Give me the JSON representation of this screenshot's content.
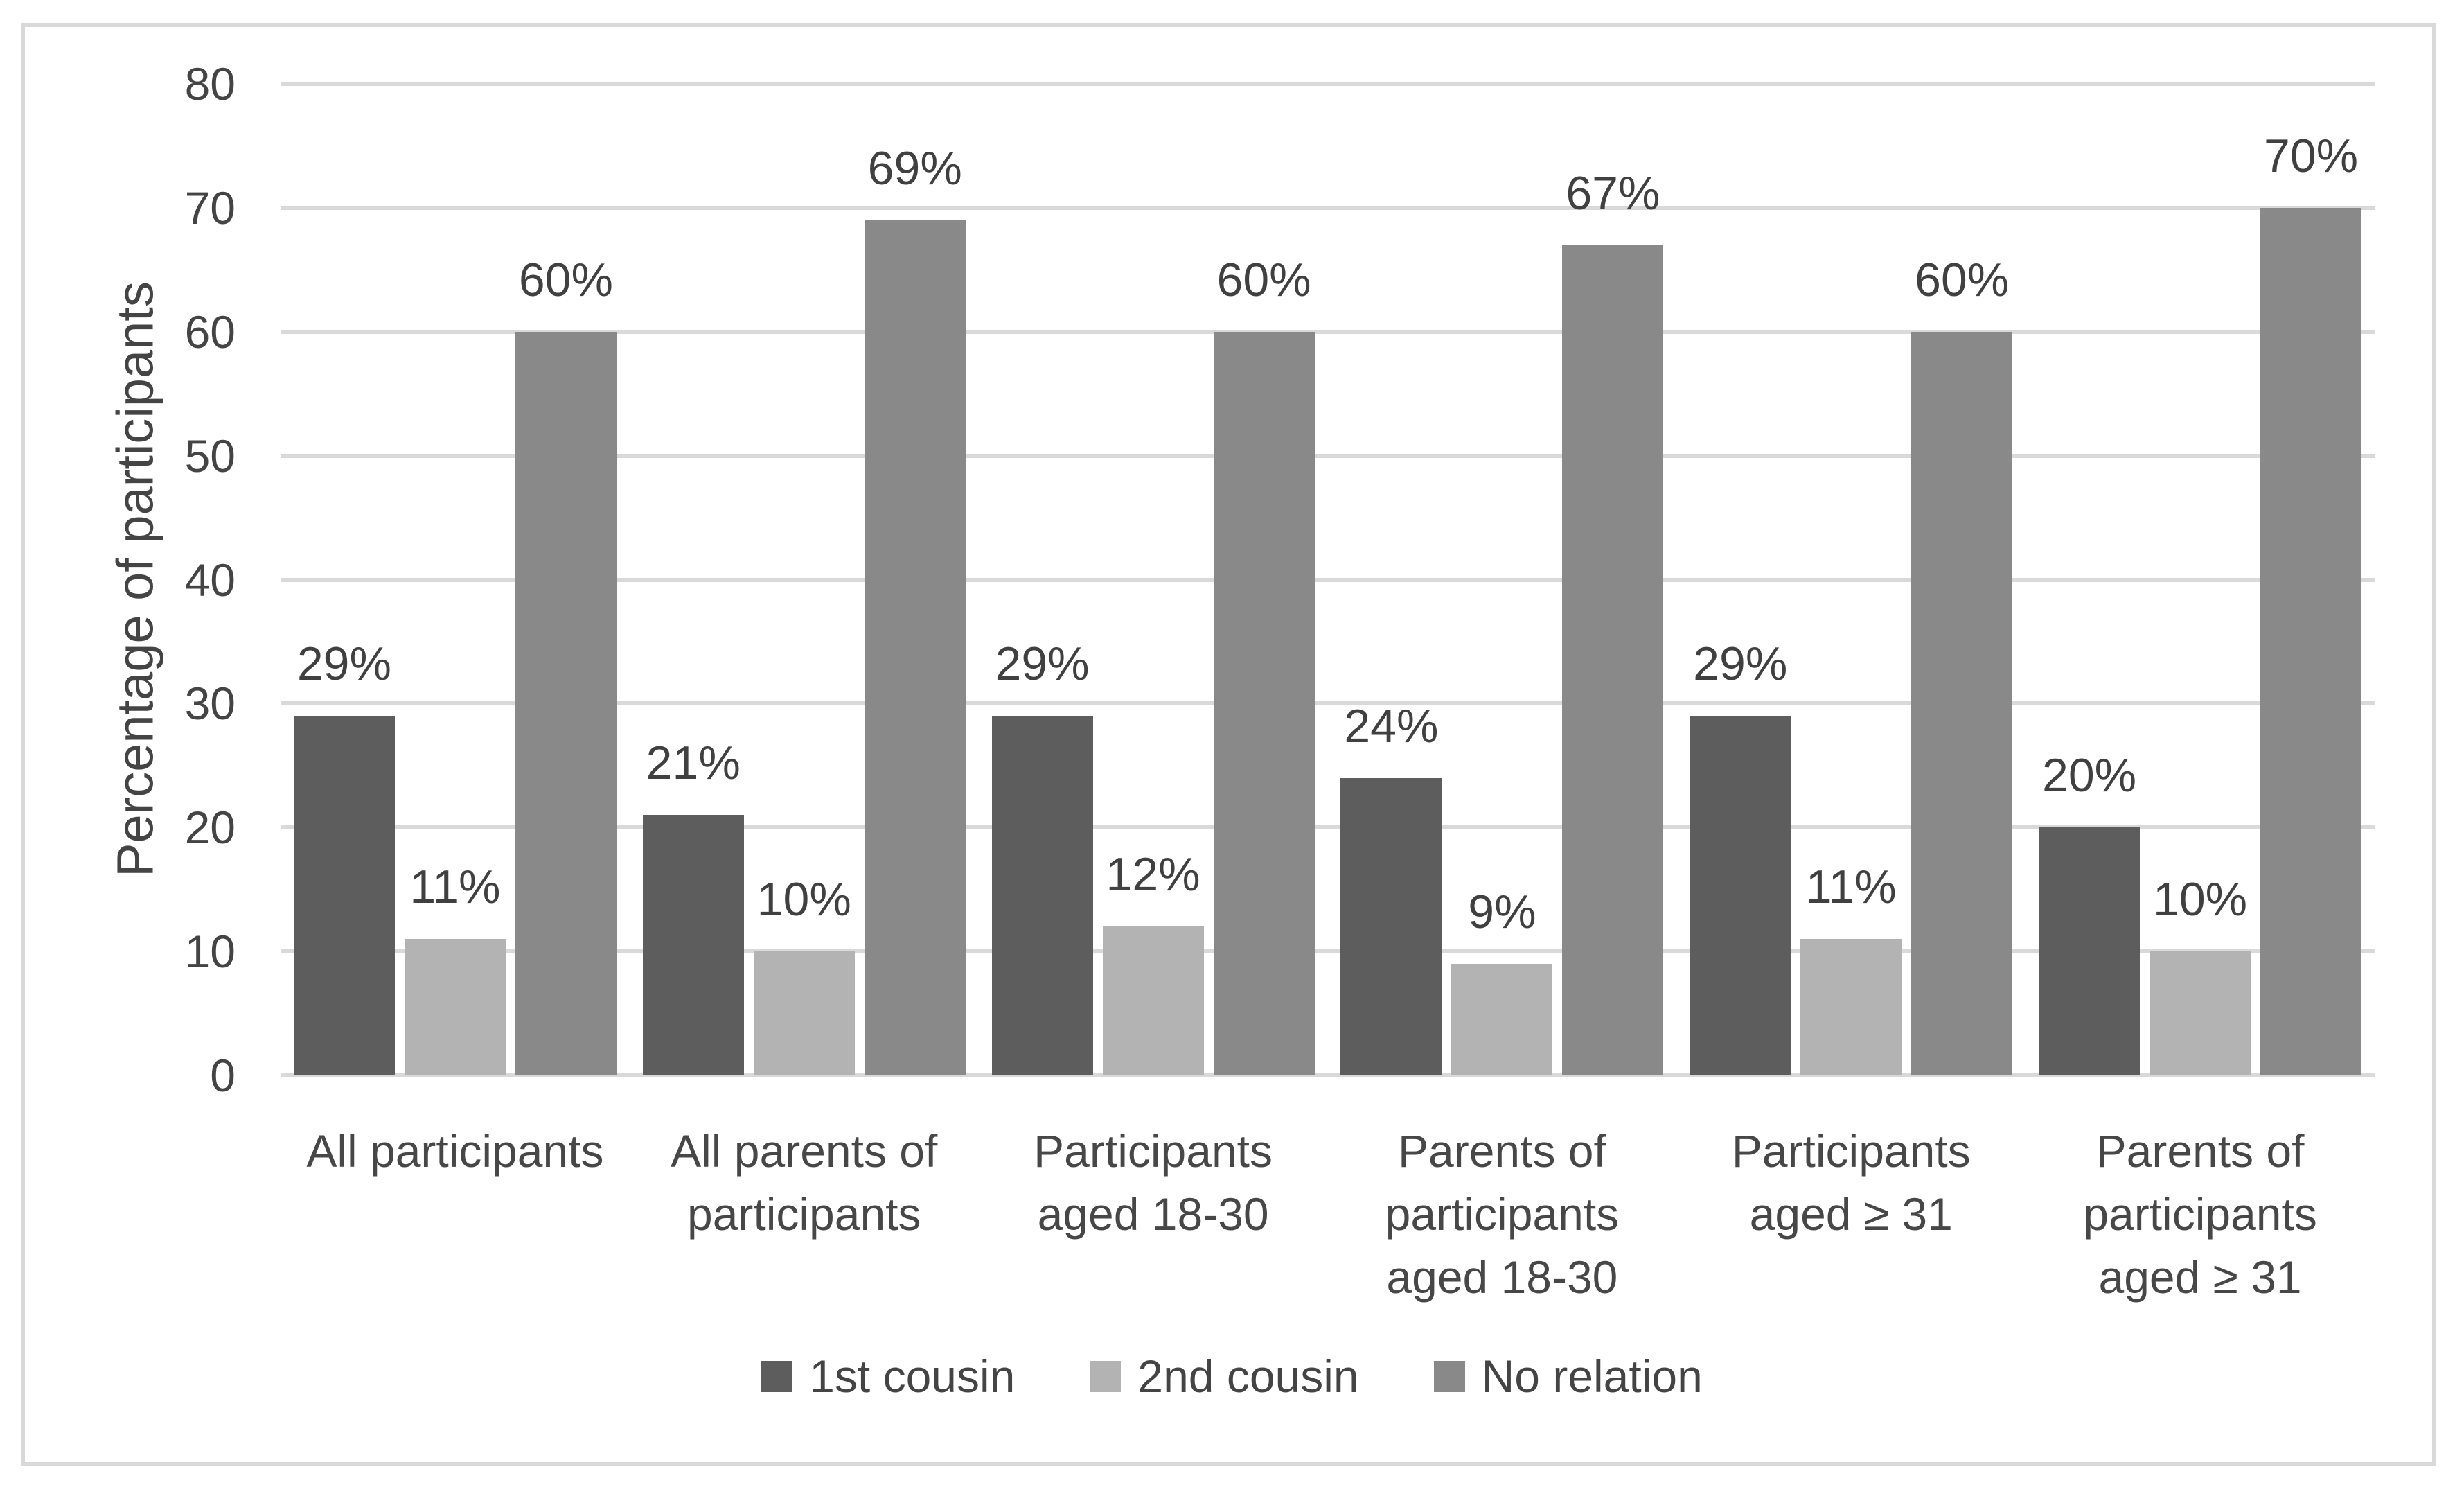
{
  "chart_data": {
    "type": "bar",
    "title": "",
    "ylabel": "Percentage of participants",
    "xlabel": "",
    "ylim": [
      0,
      80
    ],
    "yticks": [
      0,
      10,
      20,
      30,
      40,
      50,
      60,
      70,
      80
    ],
    "grid": true,
    "legend_position": "bottom",
    "categories": [
      "All participants",
      "All parents of\nparticipants",
      "Participants\naged 18-30",
      "Parents of\nparticipants\naged 18-30",
      "Participants\naged ≥ 31",
      "Parents of\nparticipants\naged ≥ 31"
    ],
    "series": [
      {
        "name": "1st cousin",
        "color": "#5d5d5d",
        "values": [
          29,
          21,
          29,
          24,
          29,
          20
        ],
        "labels": [
          "29%",
          "21%",
          "29%",
          "24%",
          "29%",
          "20%"
        ]
      },
      {
        "name": "2nd cousin",
        "color": "#b3b3b3",
        "values": [
          11,
          10,
          12,
          9,
          11,
          10
        ],
        "labels": [
          "11%",
          "10%",
          "12%",
          "9%",
          "11%",
          "10%"
        ]
      },
      {
        "name": "No relation",
        "color": "#898989",
        "values": [
          60,
          69,
          60,
          67,
          60,
          70
        ],
        "labels": [
          "60%",
          "69%",
          "60%",
          "67%",
          "60%",
          "70%"
        ]
      }
    ]
  },
  "style": {
    "grid_color": "#d9d9d9",
    "border_color": "#d9d9d9",
    "text_color": "#444444",
    "background": "#ffffff"
  }
}
